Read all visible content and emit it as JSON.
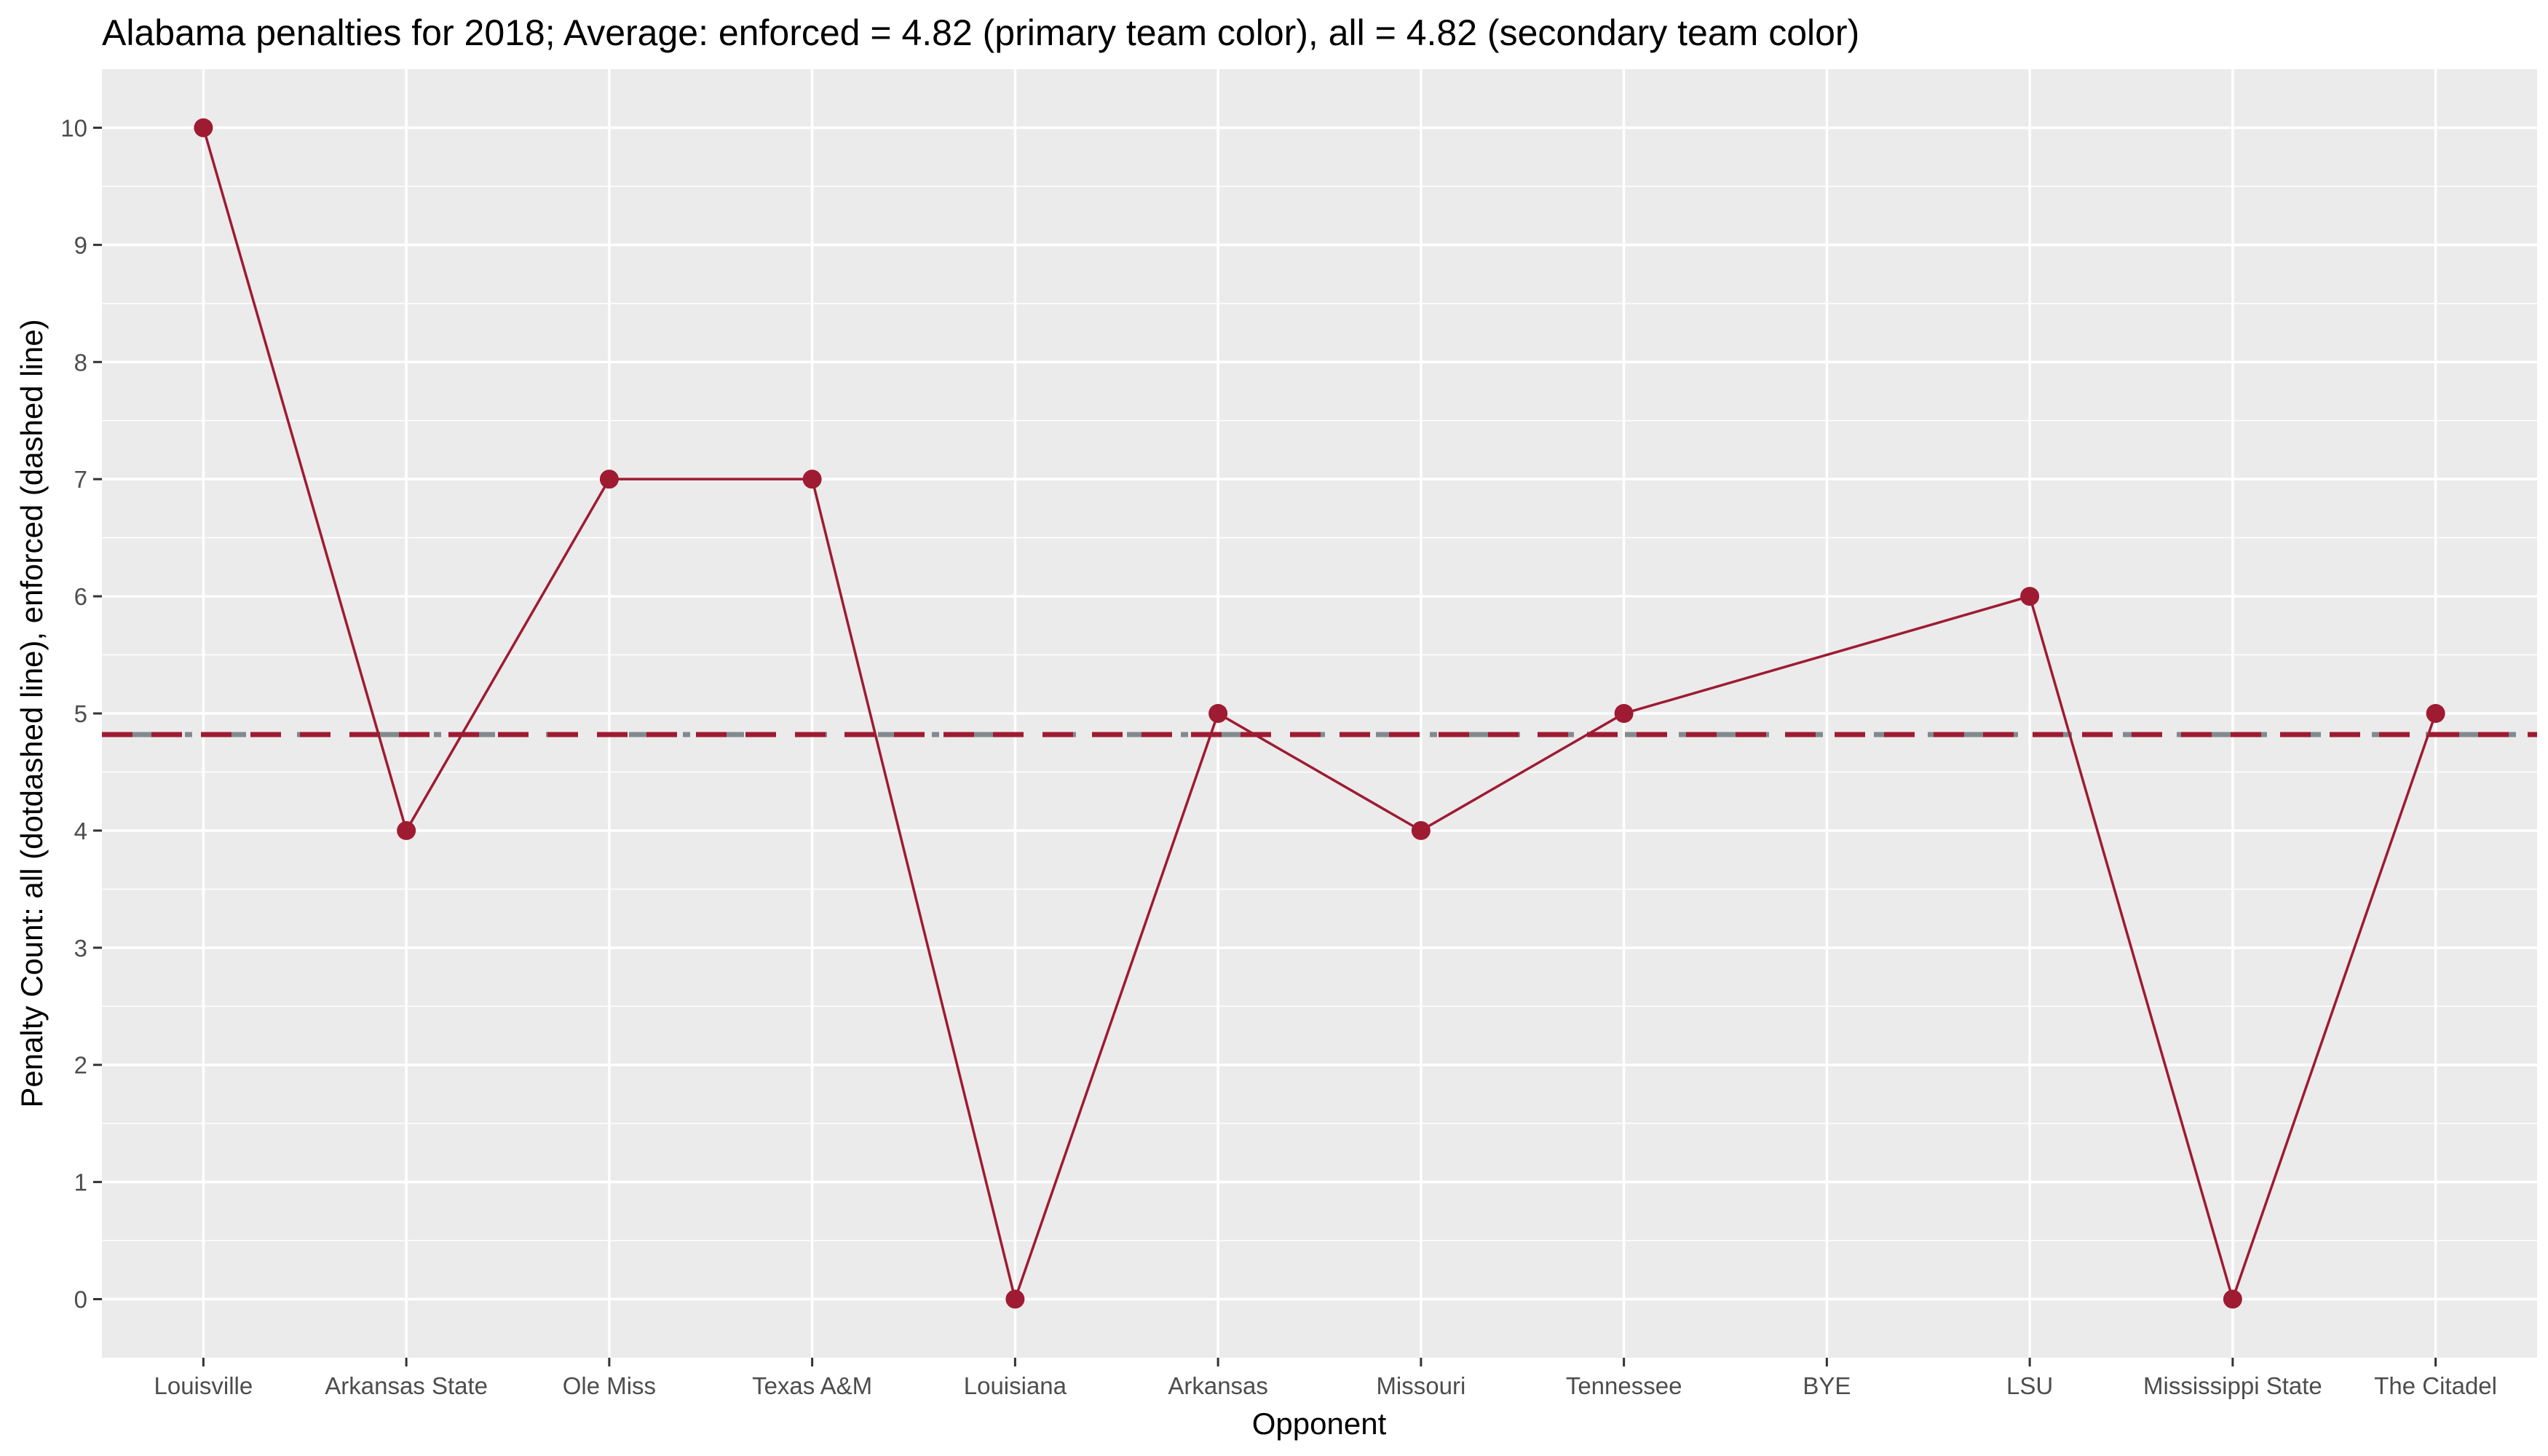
{
  "chart_data": {
    "type": "line",
    "title": "Alabama penalties for 2018; Average: enforced = 4.82 (primary team color), all = 4.82 (secondary team color)",
    "xlabel": "Opponent",
    "ylabel": "Penalty Count: all (dotdashed line), enforced (dashed line)",
    "categories": [
      "Louisville",
      "Arkansas State",
      "Ole Miss",
      "Texas A&M",
      "Louisiana",
      "Arkansas",
      "Missouri",
      "Tennessee",
      "BYE",
      "LSU",
      "Mississippi State",
      "The Citadel"
    ],
    "series": [
      {
        "values": [
          10,
          4,
          7,
          7,
          0,
          5,
          4,
          5,
          null,
          6,
          0,
          5
        ],
        "color": "#9E1B32"
      }
    ],
    "reference_lines": [
      {
        "value": 4.82,
        "style": "dotdash",
        "color": "#828A8F"
      },
      {
        "value": 4.82,
        "style": "dashed",
        "color": "#9E1B32"
      }
    ],
    "ylim": [
      -0.5,
      10.5
    ],
    "yticks": [
      0,
      1,
      2,
      3,
      4,
      5,
      6,
      7,
      8,
      9,
      10
    ],
    "grid": true,
    "panel_background": "#EBEBEB",
    "gridline_color": "#FFFFFF"
  }
}
